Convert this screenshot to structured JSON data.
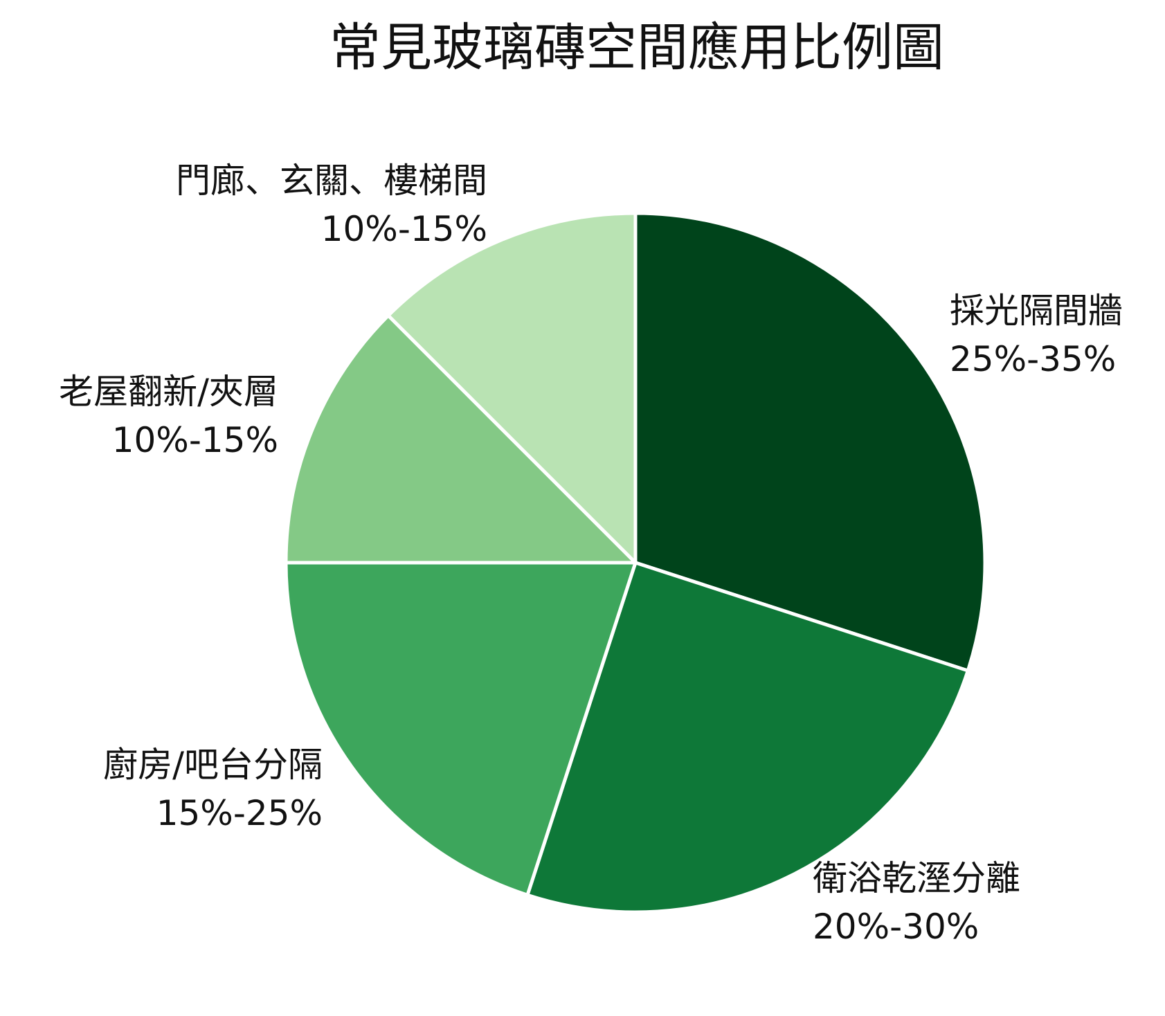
{
  "chart_data": {
    "type": "pie",
    "title": "常見玻璃磚空間應用比例圖",
    "start_angle_deg": 0,
    "direction": "clockwise",
    "legend": "none",
    "slices": [
      {
        "label": "採光隔間牆",
        "range_label": "25%-35%",
        "value": 30,
        "color": "#00441b"
      },
      {
        "label": "衛浴乾溼分離",
        "range_label": "20%-30%",
        "value": 25,
        "color": "#0e7838"
      },
      {
        "label": "廚房/吧台分隔",
        "range_label": "15%-25%",
        "value": 20,
        "color": "#3da65c"
      },
      {
        "label": "老屋翻新/夾層",
        "range_label": "10%-15%",
        "value": 12.5,
        "color": "#84c986"
      },
      {
        "label": "門廊、玄關、樓梯間",
        "range_label": "10%-15%",
        "value": 12.5,
        "color": "#b9e3b3"
      }
    ]
  }
}
